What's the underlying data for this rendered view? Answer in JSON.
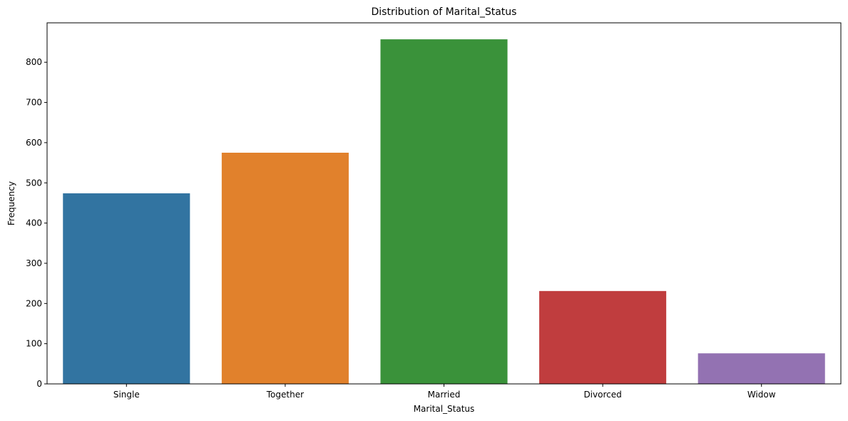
{
  "chart_data": {
    "type": "bar",
    "title": "Distribution of Marital_Status",
    "xlabel": "Marital_Status",
    "ylabel": "Frequency",
    "categories": [
      "Single",
      "Together",
      "Married",
      "Divorced",
      "Widow"
    ],
    "values": [
      474,
      575,
      857,
      231,
      76
    ],
    "colors": [
      "#3274a1",
      "#e1812c",
      "#3a923a",
      "#c03d3e",
      "#9372b2"
    ],
    "ylim": [
      0,
      898
    ],
    "yticks": [
      0,
      100,
      200,
      300,
      400,
      500,
      600,
      700,
      800
    ],
    "grid": false,
    "legend": "none"
  }
}
